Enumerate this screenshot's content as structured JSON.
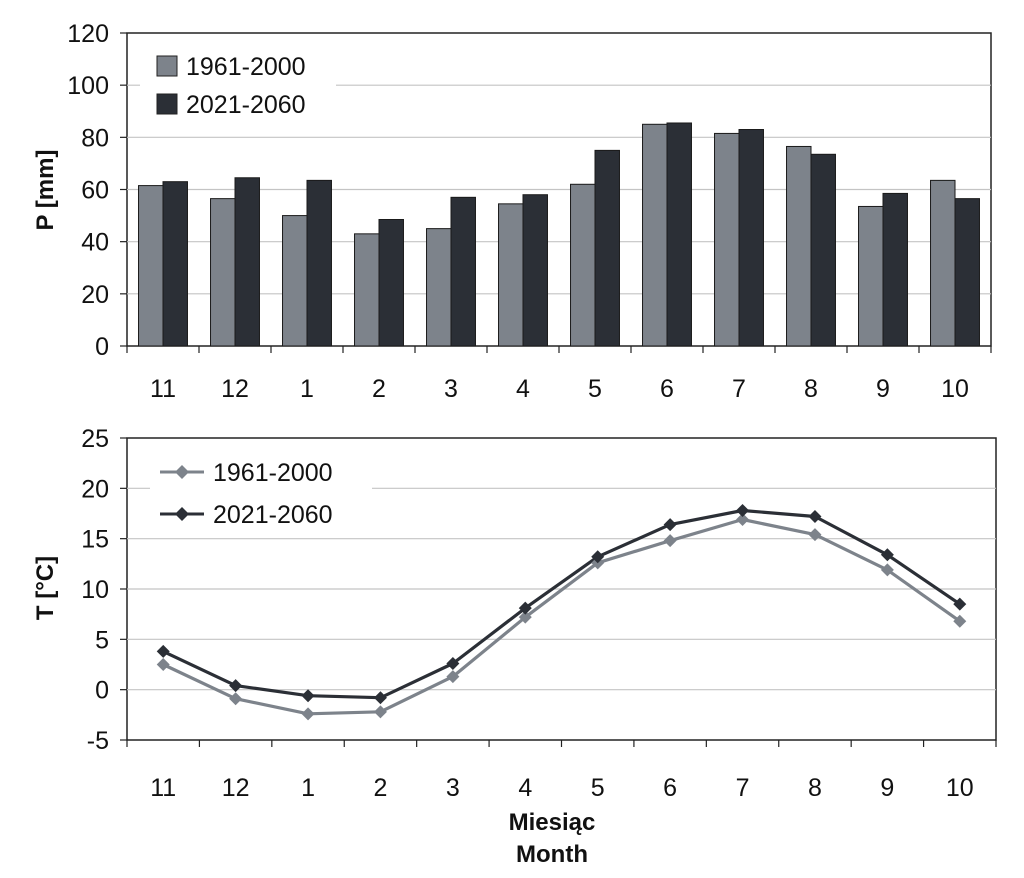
{
  "colors": {
    "series_light": "#7d838b",
    "series_dark": "#2b2f36",
    "grid": "#c4c4c4",
    "frame": "#222222"
  },
  "x_title": {
    "line1": "Miesiąc",
    "line2": "Month"
  },
  "chart_data": [
    {
      "type": "bar",
      "categories": [
        "11",
        "12",
        "1",
        "2",
        "3",
        "4",
        "5",
        "6",
        "7",
        "8",
        "9",
        "10"
      ],
      "series": [
        {
          "name": "1961-2000",
          "values": [
            61.5,
            56.5,
            50,
            43,
            45,
            54.5,
            62,
            85,
            81.5,
            76.5,
            53.5,
            63.5
          ]
        },
        {
          "name": "2021-2060",
          "values": [
            63,
            64.5,
            63.5,
            48.5,
            57,
            58,
            75,
            85.5,
            83,
            73.5,
            58.5,
            56.5
          ]
        }
      ],
      "ylabel": "P [mm]",
      "ylim": [
        0,
        120
      ],
      "yticks": [
        "0",
        "20",
        "40",
        "60",
        "80",
        "100",
        "120"
      ],
      "grid": true,
      "legend": "top-left"
    },
    {
      "type": "line",
      "categories": [
        "11",
        "12",
        "1",
        "2",
        "3",
        "4",
        "5",
        "6",
        "7",
        "8",
        "9",
        "10"
      ],
      "series": [
        {
          "name": "1961-2000",
          "values": [
            2.5,
            -0.9,
            -2.4,
            -2.2,
            1.3,
            7.2,
            12.6,
            14.8,
            16.9,
            15.4,
            11.9,
            6.8
          ]
        },
        {
          "name": "2021-2060",
          "values": [
            3.8,
            0.4,
            -0.6,
            -0.8,
            2.6,
            8.1,
            13.2,
            16.4,
            17.8,
            17.2,
            13.4,
            8.5
          ]
        }
      ],
      "ylabel": "T [°C]",
      "ylim": [
        -5,
        25
      ],
      "yticks": [
        "-5",
        "0",
        "5",
        "10",
        "15",
        "20",
        "25"
      ],
      "grid": true,
      "legend": "top-left"
    }
  ]
}
